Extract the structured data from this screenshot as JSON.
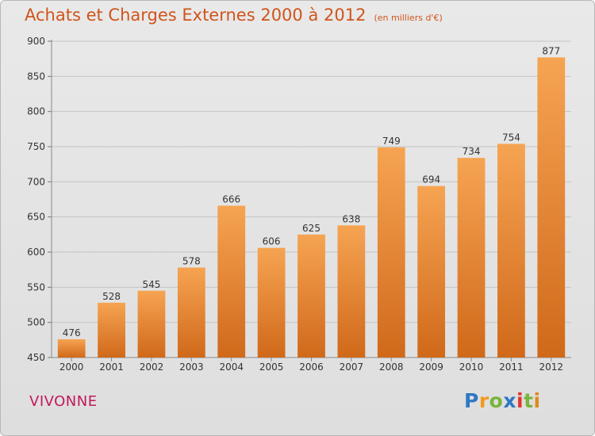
{
  "header": {
    "title": "Achats et Charges Externes 2000 à 2012",
    "subtitle": "(en milliers d'€)"
  },
  "footer": {
    "commune": "VIVONNE",
    "logo": "Proxiti"
  },
  "colors": {
    "bar_top": "#f6a452",
    "bar_bottom": "#d0691a",
    "title": "#d0541b",
    "commune": "#c2185b"
  },
  "chart_data": {
    "type": "bar",
    "categories": [
      "2000",
      "2001",
      "2002",
      "2003",
      "2004",
      "2005",
      "2006",
      "2007",
      "2008",
      "2009",
      "2010",
      "2011",
      "2012"
    ],
    "values": [
      476,
      528,
      545,
      578,
      666,
      606,
      625,
      638,
      749,
      694,
      734,
      754,
      877
    ],
    "ylim": [
      450,
      900
    ],
    "yticks": [
      450,
      500,
      550,
      600,
      650,
      700,
      750,
      800,
      850,
      900
    ],
    "grid": true
  }
}
